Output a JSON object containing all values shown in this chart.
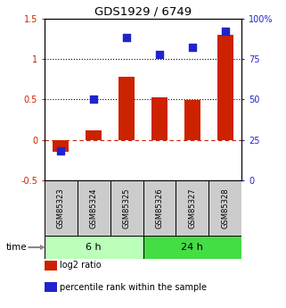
{
  "title": "GDS1929 / 6749",
  "samples": [
    "GSM85323",
    "GSM85324",
    "GSM85325",
    "GSM85326",
    "GSM85327",
    "GSM85328"
  ],
  "log2_ratio": [
    -0.15,
    0.12,
    0.78,
    0.53,
    0.49,
    1.3
  ],
  "percentile_rank_pct": [
    18,
    50,
    88,
    78,
    82,
    92
  ],
  "bar_color": "#cc2200",
  "dot_color": "#2222cc",
  "ylim_left": [
    -0.5,
    1.5
  ],
  "ylim_right": [
    0,
    100
  ],
  "yticks_left": [
    -0.5,
    0.0,
    0.5,
    1.0,
    1.5
  ],
  "ytick_labels_left": [
    "-0.5",
    "0",
    "0.5",
    "1",
    "1.5"
  ],
  "yticks_right": [
    0,
    25,
    50,
    75,
    100
  ],
  "ytick_labels_right": [
    "0",
    "25",
    "50",
    "75",
    "100%"
  ],
  "hlines": [
    0.0,
    0.5,
    1.0
  ],
  "hline_styles": [
    "dashed",
    "dotted",
    "dotted"
  ],
  "hline_colors": [
    "#cc2200",
    "#000000",
    "#000000"
  ],
  "groups": [
    {
      "label": "6 h",
      "indices": [
        0,
        1,
        2
      ],
      "color": "#bbffbb"
    },
    {
      "label": "24 h",
      "indices": [
        3,
        4,
        5
      ],
      "color": "#44dd44"
    }
  ],
  "time_label": "time",
  "legend_items": [
    {
      "label": "log2 ratio",
      "color": "#cc2200"
    },
    {
      "label": "percentile rank within the sample",
      "color": "#2222cc"
    }
  ],
  "bar_width": 0.5,
  "dot_size": 28,
  "bg_color": "#ffffff",
  "sample_bg_color": "#cccccc",
  "tick_fontsize": 7,
  "title_fontsize": 9.5
}
